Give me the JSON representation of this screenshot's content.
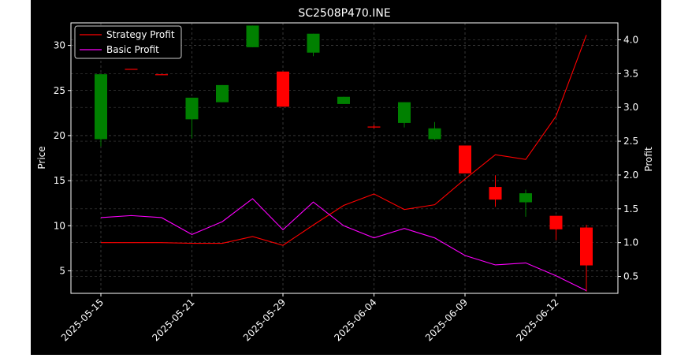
{
  "chart_data": {
    "type": "candlestick+line",
    "title": "SC2508P470.INE",
    "ylabel_left": "Price",
    "ylabel_right": "Profit",
    "ylim_left": [
      2.5,
      32.5
    ],
    "ylim_right": [
      0.25,
      4.25
    ],
    "yticks_left": [
      5,
      10,
      15,
      20,
      25,
      30
    ],
    "yticks_right": [
      0.5,
      1.0,
      1.5,
      2.0,
      2.5,
      3.0,
      3.5,
      4.0
    ],
    "ytick_labels_right": [
      "0.5",
      "1.0",
      "1.5",
      "2.0",
      "2.5",
      "3.0",
      "3.5",
      "4.0"
    ],
    "xtick_labels": [
      "2025-05-15",
      "2025-05-21",
      "2025-05-29",
      "2025-06-04",
      "2025-06-09",
      "2025-06-12"
    ],
    "xtick_positions": [
      0,
      3,
      6,
      9,
      12,
      15
    ],
    "grid": true,
    "legend_position": "top-left",
    "candles": [
      {
        "open": 19.6,
        "high": 26.8,
        "low": 18.8,
        "close": 26.8
      },
      {
        "open": 27.4,
        "high": 27.4,
        "low": 27.4,
        "close": 27.3
      },
      {
        "open": 26.8,
        "high": 26.8,
        "low": 26.8,
        "close": 26.7
      },
      {
        "open": 21.8,
        "high": 24.2,
        "low": 19.7,
        "close": 24.2
      },
      {
        "open": 23.7,
        "high": 25.6,
        "low": 23.7,
        "close": 25.6
      },
      {
        "open": 29.8,
        "high": 32.2,
        "low": 29.8,
        "close": 32.2
      },
      {
        "open": 27.1,
        "high": 27.1,
        "low": 23.2,
        "close": 23.2
      },
      {
        "open": 29.2,
        "high": 31.3,
        "low": 28.8,
        "close": 31.3
      },
      {
        "open": 23.5,
        "high": 24.3,
        "low": 23.5,
        "close": 24.3
      },
      {
        "open": 21.0,
        "high": 21.2,
        "low": 20.8,
        "close": 20.9
      },
      {
        "open": 21.4,
        "high": 23.7,
        "low": 20.9,
        "close": 23.7
      },
      {
        "open": 19.6,
        "high": 21.5,
        "low": 19.5,
        "close": 20.8
      },
      {
        "open": 18.9,
        "high": 18.9,
        "low": 15.8,
        "close": 15.8
      },
      {
        "open": 14.3,
        "high": 15.6,
        "low": 12.1,
        "close": 12.9
      },
      {
        "open": 12.6,
        "high": 14.0,
        "low": 11.0,
        "close": 13.6
      },
      {
        "open": 11.1,
        "high": 11.1,
        "low": 8.4,
        "close": 9.6
      },
      {
        "open": 9.8,
        "high": 10.1,
        "low": 2.7,
        "close": 5.6
      }
    ],
    "series": [
      {
        "name": "Strategy Profit",
        "color": "#ff0000",
        "values": [
          1.0,
          1.0,
          1.0,
          0.99,
          0.99,
          1.09,
          0.96,
          1.26,
          1.55,
          1.72,
          1.49,
          1.56,
          1.94,
          2.3,
          2.23,
          2.87,
          4.07
        ]
      },
      {
        "name": "Basic Profit",
        "color": "#ff00ff",
        "values": [
          1.37,
          1.4,
          1.37,
          1.12,
          1.31,
          1.65,
          1.19,
          1.6,
          1.25,
          1.07,
          1.21,
          1.07,
          0.81,
          0.67,
          0.7,
          0.51,
          0.29
        ]
      }
    ],
    "colors": {
      "down": "#ff0000",
      "up": "#008000",
      "grid": "#808080"
    }
  }
}
